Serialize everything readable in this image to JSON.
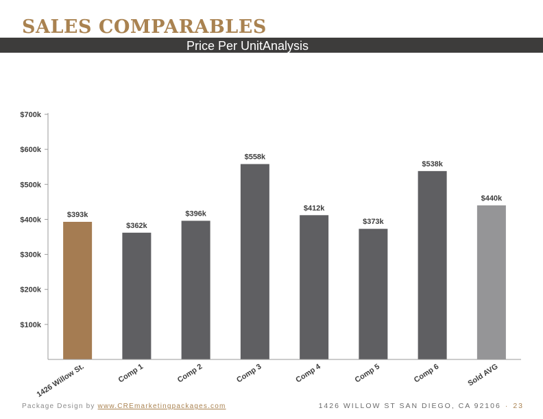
{
  "header": {
    "title": "SALES COMPARABLES",
    "subtitle": "Price Per UnitAnalysis"
  },
  "colors": {
    "accent": "#a98250",
    "subject_bar": "#a57c52",
    "comp_bar": "#5f5f62",
    "avg_bar": "#959597",
    "band": "#3d3c3b"
  },
  "chart_data": {
    "type": "bar",
    "categories": [
      "1426 Willow St.",
      "Comp 1",
      "Comp 2",
      "Comp 3",
      "Comp 4",
      "Comp 5",
      "Comp 6",
      "Sold AVG"
    ],
    "values": [
      393,
      362,
      396,
      558,
      412,
      373,
      538,
      440
    ],
    "value_labels": [
      "$393k",
      "$362k",
      "$396k",
      "$558k",
      "$412k",
      "$373k",
      "$538k",
      "$440k"
    ],
    "yticks": [
      100,
      200,
      300,
      400,
      500,
      600,
      700
    ],
    "ytick_labels": [
      "$100k",
      "$200k",
      "$300k",
      "$400k",
      "$500k",
      "$600k",
      "$700k"
    ],
    "ylim": [
      0,
      700
    ],
    "title": "",
    "xlabel": "",
    "ylabel": "",
    "grid": false,
    "legend": "none"
  },
  "footer": {
    "credit_prefix": "Package Design by ",
    "credit_link": "www.CREmarketingpackages.com",
    "address": "1426 WILLOW ST SAN DIEGO, CA 92106",
    "separator": "·",
    "page_number": "23"
  }
}
